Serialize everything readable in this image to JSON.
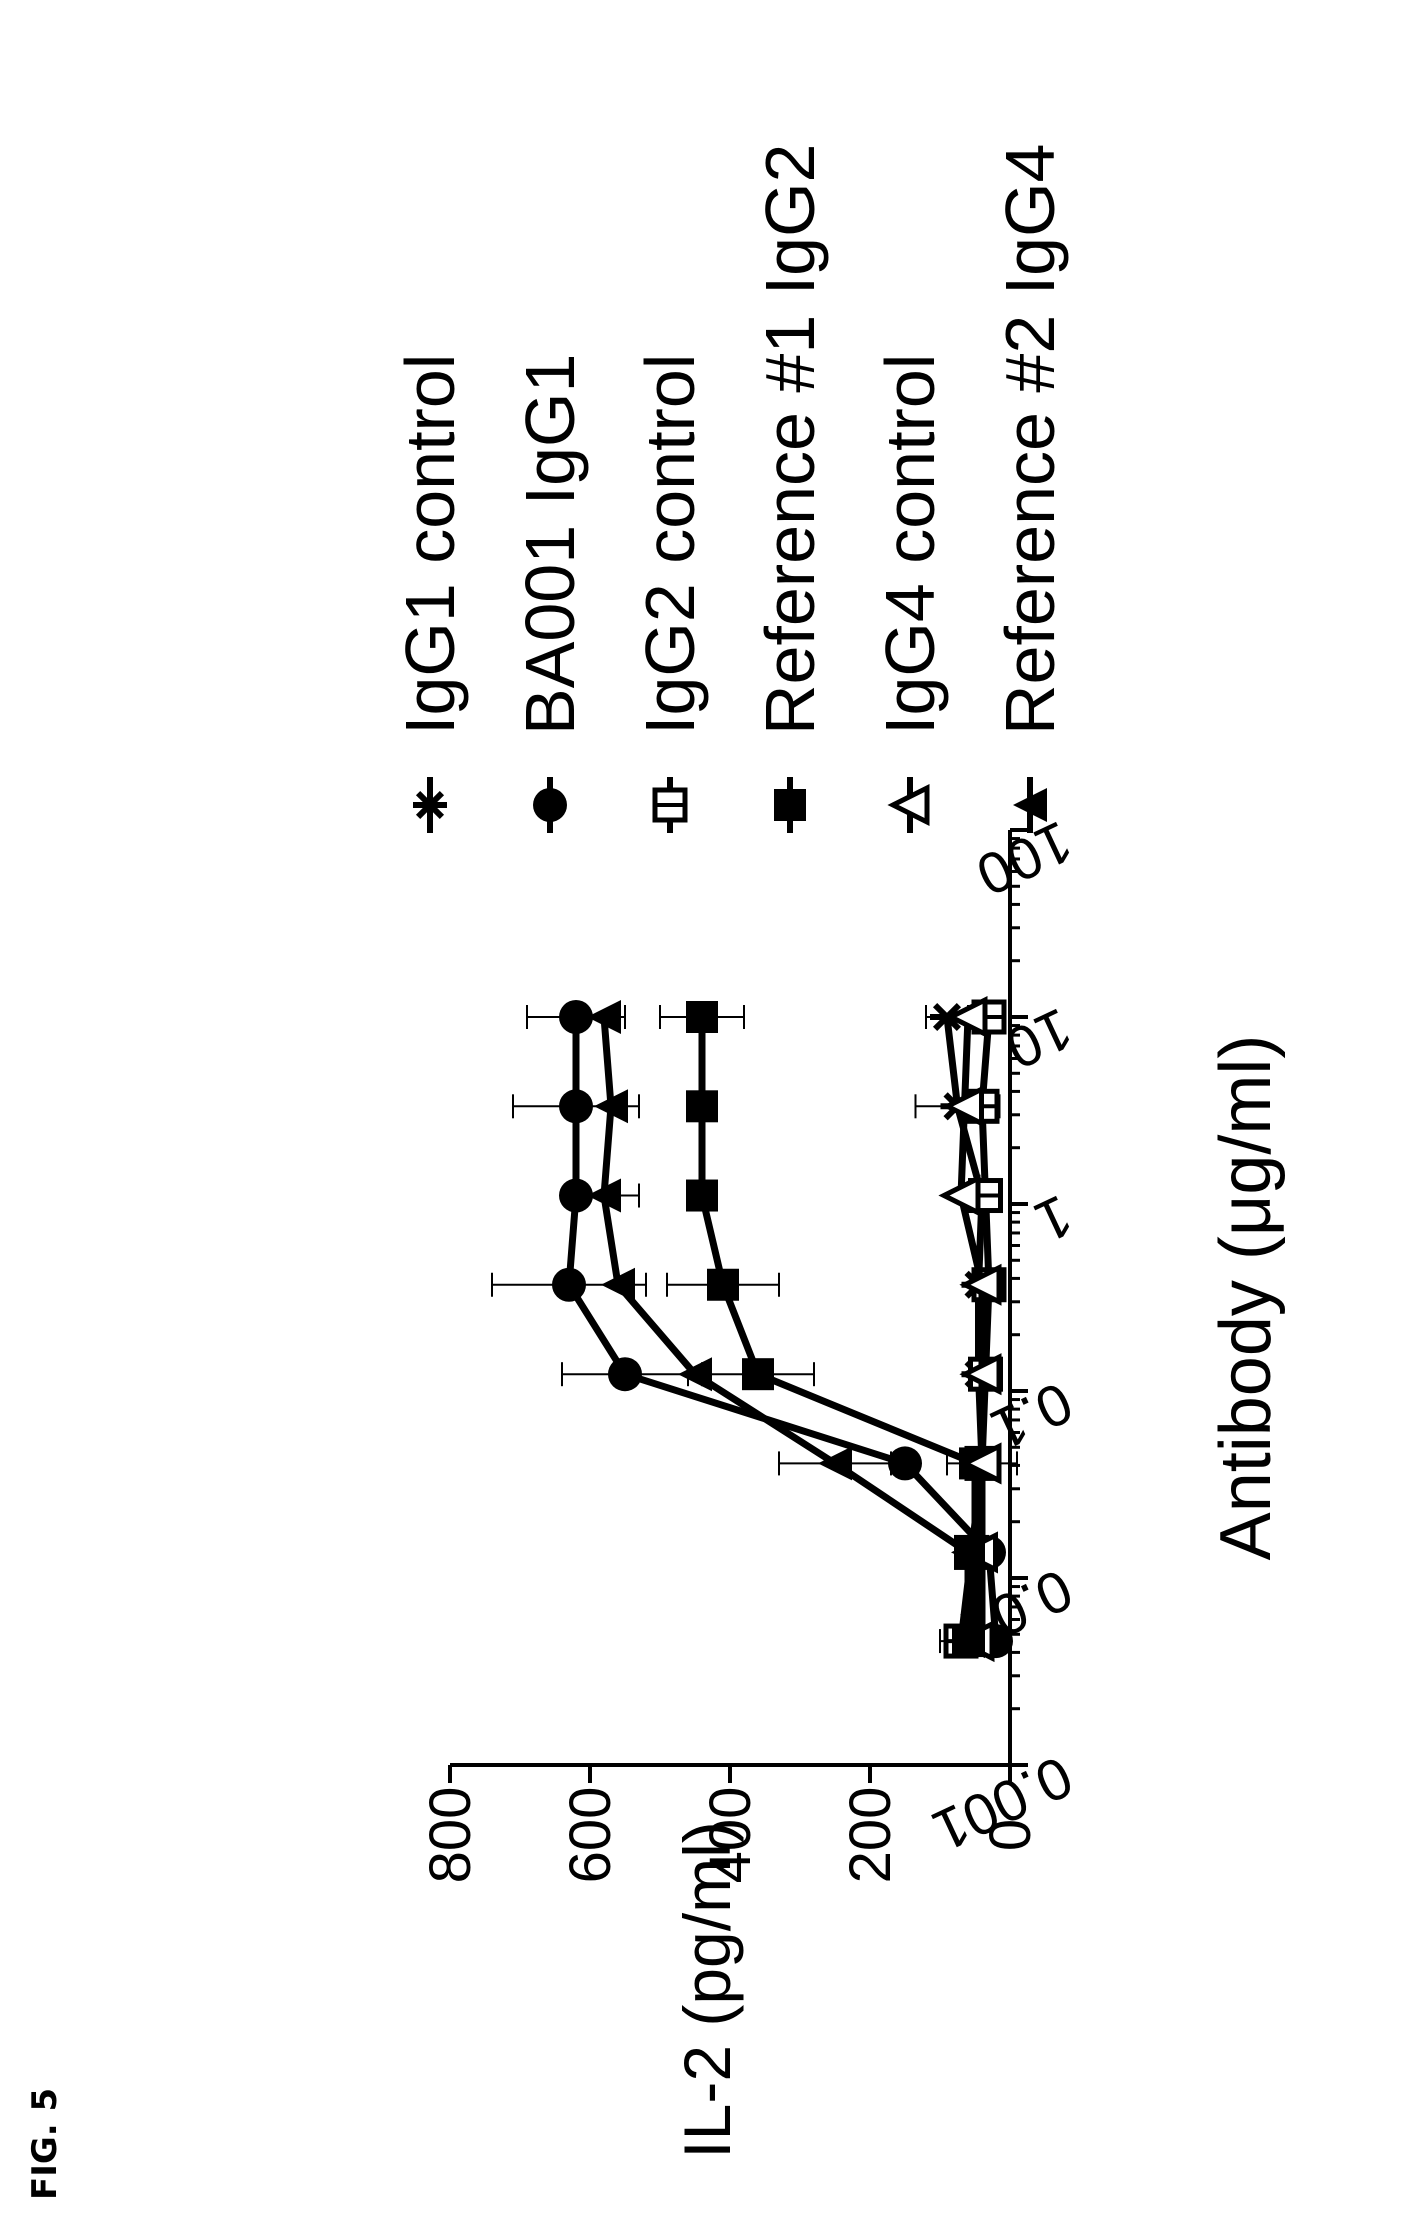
{
  "figure_label": "FIG. 5",
  "chart_data": {
    "type": "line",
    "title": "",
    "xlabel": "Antibody (μg/ml)",
    "ylabel": "IL-2 (pg/ml)",
    "xscale": "log",
    "xlim": [
      0.001,
      100
    ],
    "ylim": [
      0,
      800
    ],
    "x_ticks": [
      "0.001",
      "0.01",
      "0.1",
      "1",
      "10",
      "100"
    ],
    "y_ticks": [
      "0",
      "200",
      "400",
      "600",
      "800"
    ],
    "orientation": "rotated 90° counter-clockwise",
    "legend_position": "right",
    "x": [
      0.0041,
      0.0123,
      0.037,
      0.111,
      0.333,
      1.0
    ],
    "x_per_series_note": "",
    "series": [
      {
        "name": "IgG1 control",
        "marker": "asterisk",
        "x": [
          0.0046,
          0.0137,
          0.041,
          0.123,
          0.37,
          1.11,
          3.33,
          10
        ],
        "values": [
          40,
          40,
          40,
          45,
          45,
          40,
          75,
          90
        ],
        "errors": [
          0,
          0,
          0,
          0,
          0,
          0,
          60,
          30
        ]
      },
      {
        "name": "BA001 IgG1",
        "marker": "filled-circle",
        "x": [
          0.0046,
          0.0137,
          0.041,
          0.123,
          0.37,
          1.11,
          3.33,
          10
        ],
        "values": [
          20,
          30,
          150,
          550,
          630,
          620,
          620,
          620
        ],
        "errors": [
          0,
          0,
          0,
          90,
          110,
          0,
          90,
          70
        ]
      },
      {
        "name": "IgG2 control",
        "marker": "open-square-cross",
        "x": [
          0.0046,
          0.0137,
          0.041,
          0.123,
          0.37,
          1.11,
          3.33,
          10
        ],
        "values": [
          70,
          55,
          40,
          35,
          30,
          35,
          40,
          30
        ],
        "errors": [
          30,
          0,
          50,
          0,
          0,
          0,
          0,
          0
        ]
      },
      {
        "name": "Reference #1 IgG2",
        "marker": "filled-square",
        "x": [
          0.0046,
          0.0137,
          0.041,
          0.123,
          0.37,
          1.11,
          3.33,
          10
        ],
        "values": [
          60,
          50,
          50,
          360,
          410,
          440,
          440,
          440
        ],
        "errors": [
          0,
          0,
          0,
          80,
          80,
          0,
          0,
          60
        ]
      },
      {
        "name": "IgG4 control",
        "marker": "open-triangle",
        "x": [
          0.0046,
          0.0137,
          0.041,
          0.123,
          0.37,
          1.11,
          3.33,
          10
        ],
        "values": [
          50,
          45,
          40,
          40,
          40,
          70,
          65,
          60
        ],
        "errors": [
          0,
          0,
          0,
          0,
          0,
          0,
          0,
          0
        ]
      },
      {
        "name": "Reference #2 IgG4",
        "marker": "filled-triangle",
        "x": [
          0.0046,
          0.0137,
          0.041,
          0.123,
          0.37,
          1.11,
          3.33,
          10
        ],
        "values": [
          60,
          60,
          250,
          450,
          560,
          580,
          570,
          580
        ],
        "errors": [
          0,
          0,
          80,
          0,
          0,
          50,
          0,
          0
        ]
      }
    ]
  }
}
